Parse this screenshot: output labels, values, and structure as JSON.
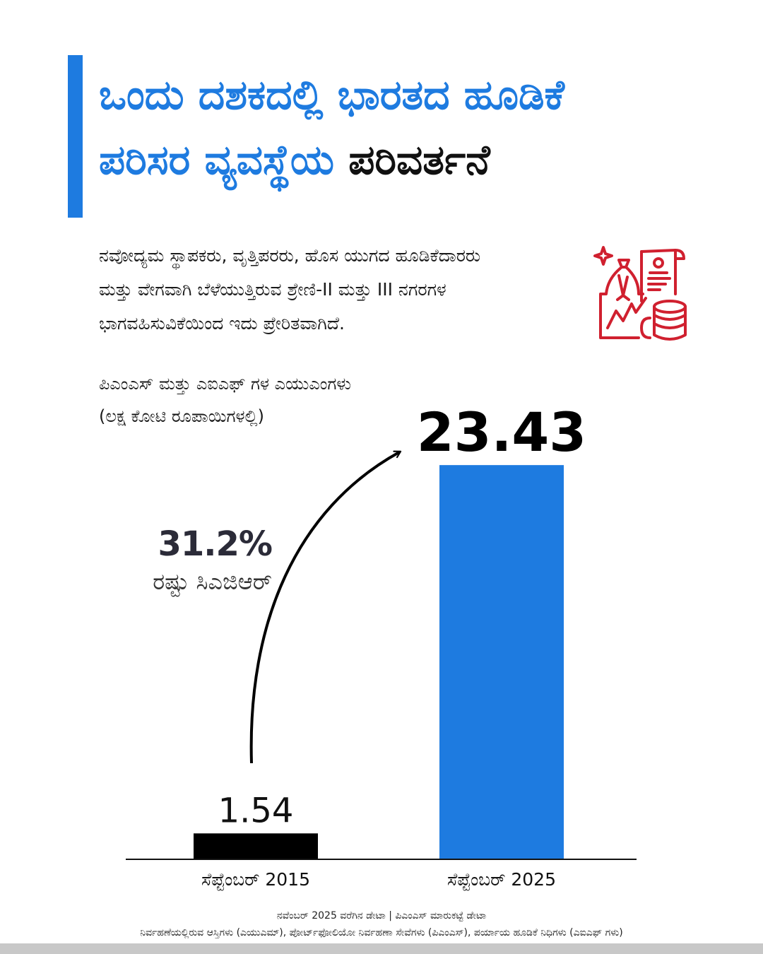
{
  "title": {
    "line1": "ಒಂದು ದಶಕದಲ್ಲಿ ಭಾರತದ ಹೂಡಿಕೆ",
    "line2_blue": "ಪರಿಸರ ವ್ಯವಸ್ಥೆಯ ",
    "line2_dark": "ಪರಿವರ್ತನೆ"
  },
  "subtitle": {
    "line1": "ನವೋದ್ಯಮ ಸ್ಥಾಪಕರು, ವೃತ್ತಿಪರರು, ಹೊಸ ಯುಗದ ಹೂಡಿಕೆದಾರರು",
    "line2": "ಮತ್ತು ವೇಗವಾಗಿ ಬೆಳೆಯುತ್ತಿರುವ  ಶ್ರೇಣಿ-II ಮತ್ತು III ನಗರಗಳ",
    "line3": "ಭಾಗವಹಿಸುವಿಕೆಯಿಂದ ಇದು ಪ್ರೇರಿತವಾಗಿದೆ."
  },
  "illustration_icon": "investment-documents-coins-icon",
  "colors": {
    "accent": "#1e7be0",
    "bar_2015": "#000000",
    "bar_2025": "#1e7be0",
    "icon": "#d0202f"
  },
  "chart_data": {
    "type": "bar",
    "title_line1": "ಪಿಎಂಎಸ್ ಮತ್ತು ಎಐಎಫ್ ಗಳ ಎಯುಎಂಗಳು",
    "title_line2": "(ಲಕ್ಷ ಕೋಟಿ ರೂಪಾಯಿಗಳಲ್ಲಿ)",
    "categories": [
      "ಸೆಪ್ಟೆಂಬರ್ 2015",
      "ಸೆಪ್ಟೆಂಬರ್ 2025"
    ],
    "values": [
      1.54,
      23.43
    ],
    "value_labels": [
      "1.54",
      "23.43"
    ],
    "ylim": [
      0,
      25.2
    ],
    "grid": false,
    "annotation": {
      "value": "31.2%",
      "label": "ರಷ್ಟು  ಸಿಎಜಿಆರ್"
    }
  },
  "footnote": {
    "line1": "ನವೆಂಬರ್ 2025 ವರೆಗಿನ ಡೇಟಾ | ಪಿಎಂಎಸ್ ಮಾರುಕಟ್ಟೆ ಡೇಟಾ",
    "line2": "ನಿರ್ವಹಣೆಯಲ್ಲಿರುವ ಆಸ್ತಿಗಳು (ಎಯುಎಮ್), ಪೋರ್ಟ್‌ಫೋಲಿಯೋ ನಿರ್ವಹಣಾ ಸೇವೆಗಳು (ಪಿಎಂಎಸ್), ಪರ್ಯಾಯ ಹೂಡಿಕೆ ನಿಧಿಗಳು (ಎಐಎಫ್ ಗಳು)"
  }
}
